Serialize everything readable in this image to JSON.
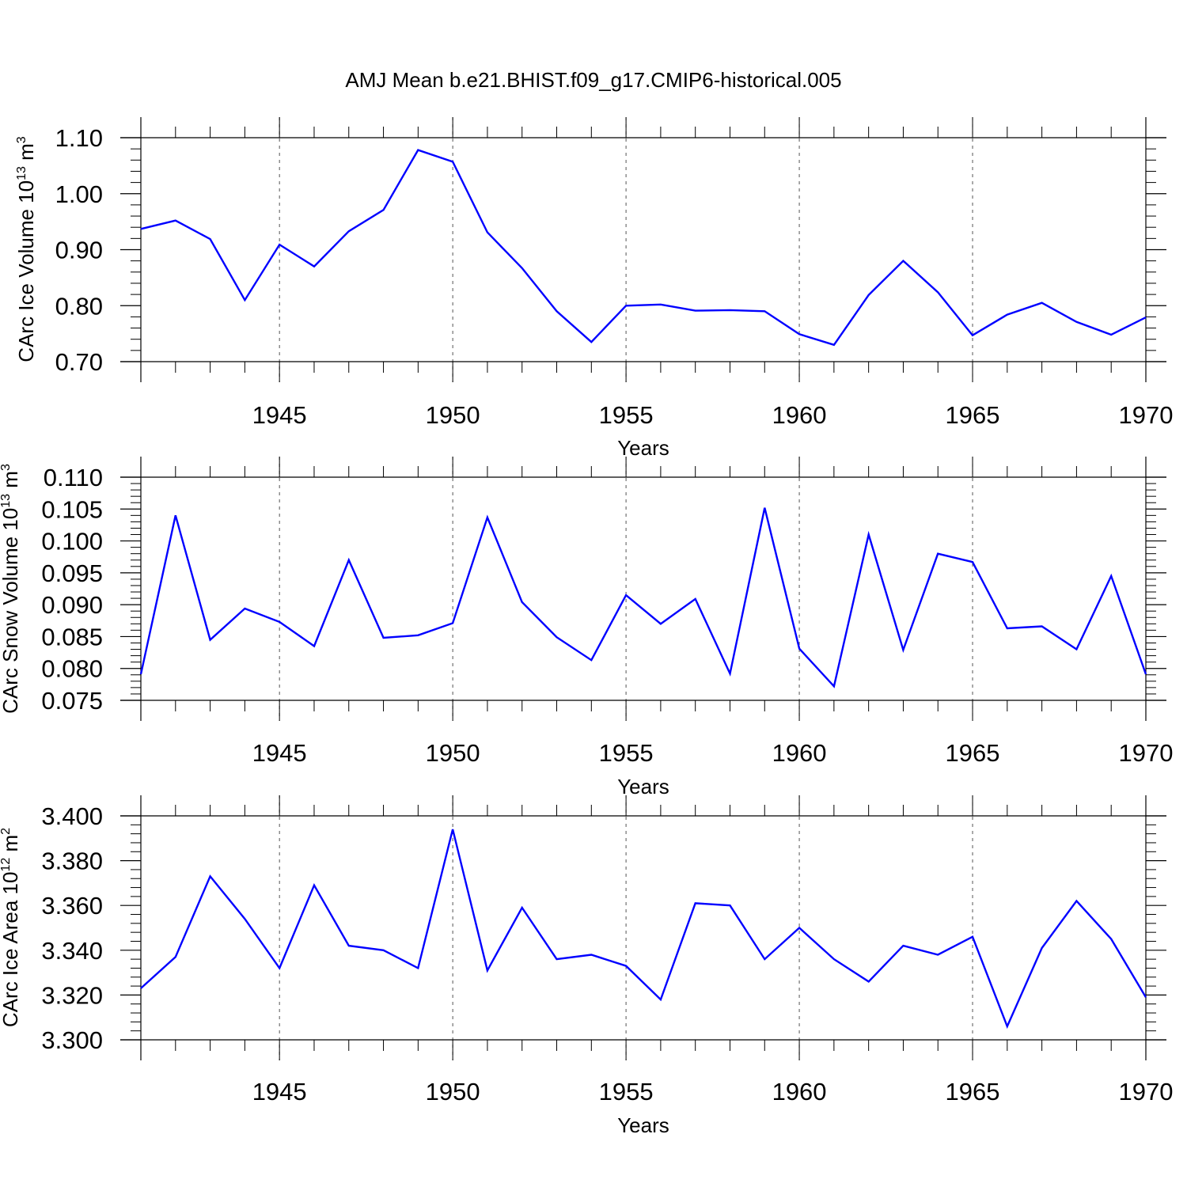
{
  "title": "AMJ Mean b.e21.BHIST.f09_g17.CMIP6-historical.005",
  "chart_data": [
    {
      "type": "line",
      "title": "AMJ Mean b.e21.BHIST.f09_g17.CMIP6-historical.005",
      "xlabel": "Years",
      "ylabel": {
        "base": "CArc Ice Volume 10",
        "exp": "13",
        "unit": " m",
        "unit_exp": "3"
      },
      "xlim": [
        1941,
        1970
      ],
      "ylim": [
        0.7,
        1.1
      ],
      "yticks": [
        0.7,
        0.8,
        0.9,
        1.0,
        1.1
      ],
      "ytick_labels": [
        "0.70",
        "0.80",
        "0.90",
        "1.00",
        "1.10"
      ],
      "xticks": [
        1945,
        1950,
        1955,
        1960,
        1965,
        1970
      ],
      "xtick_labels": [
        "1945",
        "1950",
        "1955",
        "1960",
        "1965",
        "1970"
      ],
      "line_color": "#0000ff",
      "x": [
        1941,
        1942,
        1943,
        1944,
        1945,
        1946,
        1947,
        1948,
        1949,
        1950,
        1951,
        1952,
        1953,
        1954,
        1955,
        1956,
        1957,
        1958,
        1959,
        1960,
        1961,
        1962,
        1963,
        1964,
        1965,
        1966,
        1967,
        1968,
        1969,
        1970
      ],
      "values": [
        0.937,
        0.952,
        0.919,
        0.81,
        0.909,
        0.87,
        0.933,
        0.971,
        1.078,
        1.057,
        0.931,
        0.867,
        0.79,
        0.735,
        0.8,
        0.802,
        0.791,
        0.792,
        0.79,
        0.749,
        0.73,
        0.819,
        0.88,
        0.824,
        0.747,
        0.784,
        0.805,
        0.771,
        0.748,
        0.779
      ]
    },
    {
      "type": "line",
      "xlabel": "Years",
      "ylabel": {
        "base": "CArc Snow Volume 10",
        "exp": "13",
        "unit": " m",
        "unit_exp": "3"
      },
      "xlim": [
        1941,
        1970
      ],
      "ylim": [
        0.075,
        0.11
      ],
      "yticks": [
        0.075,
        0.08,
        0.085,
        0.09,
        0.095,
        0.1,
        0.105,
        0.11
      ],
      "ytick_labels": [
        "0.075",
        "0.080",
        "0.085",
        "0.090",
        "0.095",
        "0.100",
        "0.105",
        "0.110"
      ],
      "xticks": [
        1945,
        1950,
        1955,
        1960,
        1965,
        1970
      ],
      "xtick_labels": [
        "1945",
        "1950",
        "1955",
        "1960",
        "1965",
        "1970"
      ],
      "line_color": "#0000ff",
      "x": [
        1941,
        1942,
        1943,
        1944,
        1945,
        1946,
        1947,
        1948,
        1949,
        1950,
        1951,
        1952,
        1953,
        1954,
        1955,
        1956,
        1957,
        1958,
        1959,
        1960,
        1961,
        1962,
        1963,
        1964,
        1965,
        1966,
        1967,
        1968,
        1969,
        1970
      ],
      "values": [
        0.0791,
        0.104,
        0.0845,
        0.0894,
        0.0873,
        0.0835,
        0.097,
        0.0848,
        0.0852,
        0.0871,
        0.1037,
        0.0904,
        0.0849,
        0.0813,
        0.0915,
        0.087,
        0.0909,
        0.0792,
        0.1052,
        0.0831,
        0.0772,
        0.101,
        0.0829,
        0.098,
        0.0967,
        0.0863,
        0.0866,
        0.083,
        0.0945,
        0.0791
      ]
    },
    {
      "type": "line",
      "xlabel": "Years",
      "ylabel": {
        "base": "CArc Ice Area 10",
        "exp": "12",
        "unit": " m",
        "unit_exp": "2"
      },
      "xlim": [
        1941,
        1970
      ],
      "ylim": [
        3.3,
        3.4
      ],
      "yticks": [
        3.3,
        3.32,
        3.34,
        3.36,
        3.38,
        3.4
      ],
      "ytick_labels": [
        "3.300",
        "3.320",
        "3.340",
        "3.360",
        "3.380",
        "3.400"
      ],
      "xticks": [
        1945,
        1950,
        1955,
        1960,
        1965,
        1970
      ],
      "xtick_labels": [
        "1945",
        "1950",
        "1955",
        "1960",
        "1965",
        "1970"
      ],
      "line_color": "#0000ff",
      "x": [
        1941,
        1942,
        1943,
        1944,
        1945,
        1946,
        1947,
        1948,
        1949,
        1950,
        1951,
        1952,
        1953,
        1954,
        1955,
        1956,
        1957,
        1958,
        1959,
        1960,
        1961,
        1962,
        1963,
        1964,
        1965,
        1966,
        1967,
        1968,
        1969,
        1970
      ],
      "values": [
        3.323,
        3.337,
        3.373,
        3.354,
        3.332,
        3.369,
        3.342,
        3.34,
        3.332,
        3.394,
        3.331,
        3.359,
        3.336,
        3.338,
        3.333,
        3.318,
        3.361,
        3.36,
        3.336,
        3.35,
        3.336,
        3.326,
        3.342,
        3.338,
        3.346,
        3.306,
        3.341,
        3.362,
        3.345,
        3.319
      ]
    }
  ]
}
